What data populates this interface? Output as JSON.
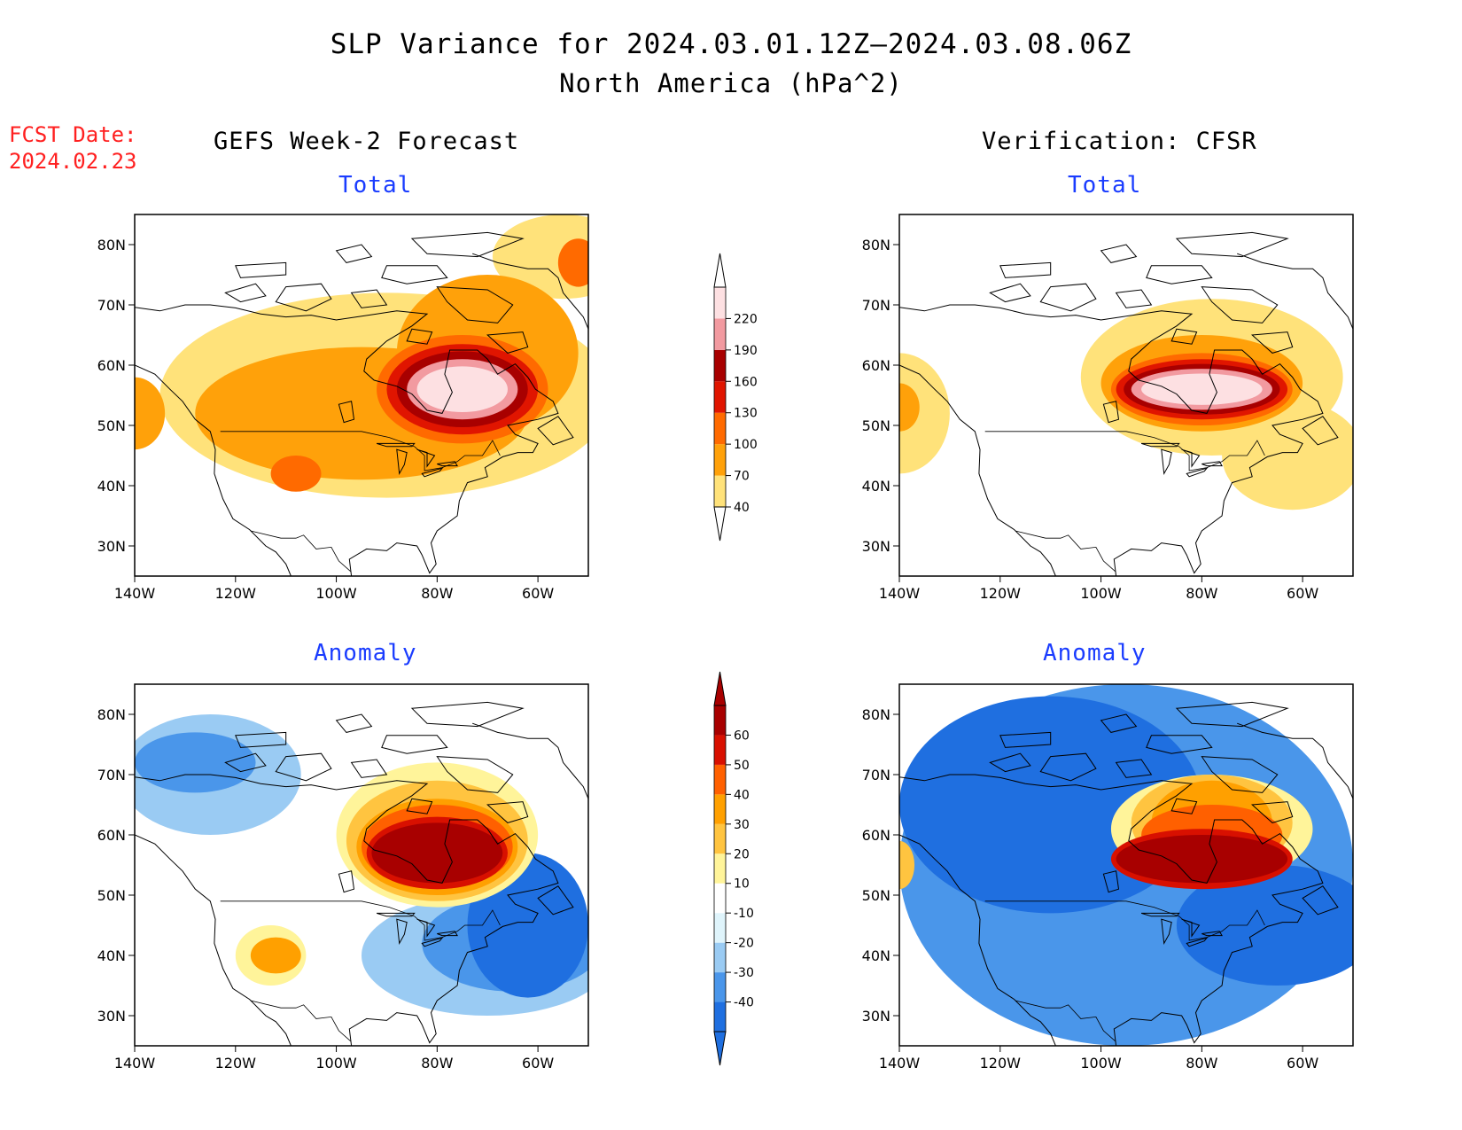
{
  "title": "SLP Variance for 2024.03.01.12Z—2024.03.08.06Z",
  "subtitle": "North America (hPa^2)",
  "fcst_date_label": "FCST Date:",
  "fcst_date_value": "2024.02.23",
  "columns": [
    "GEFS Week-2 Forecast",
    "Verification: CFSR"
  ],
  "panel_titles": {
    "total": "Total",
    "anomaly": "Anomaly"
  },
  "map_extent": {
    "lon_min": -140,
    "lon_max": -50,
    "lat_min": 25,
    "lat_max": 85
  },
  "lon_ticks": [
    -140,
    -120,
    -100,
    -80,
    -60
  ],
  "lon_tick_labels": [
    "140W",
    "120W",
    "100W",
    "80W",
    "60W"
  ],
  "lat_ticks": [
    30,
    40,
    50,
    60,
    70,
    80
  ],
  "lat_tick_labels": [
    "30N",
    "40N",
    "50N",
    "60N",
    "70N",
    "80N"
  ],
  "colorbars": {
    "total": {
      "levels": [
        40,
        70,
        100,
        130,
        160,
        190,
        220
      ],
      "labels": [
        "40",
        "70",
        "100",
        "130",
        "160",
        "190",
        "220"
      ],
      "colors": [
        "#ffe27a",
        "#ffa10a",
        "#ff6a00",
        "#e01500",
        "#a80000",
        "#f29aa0",
        "#fde0e2"
      ]
    },
    "anomaly": {
      "levels": [
        -40,
        -30,
        -20,
        -10,
        10,
        20,
        30,
        40,
        50,
        60
      ],
      "labels": [
        "-40",
        "-30",
        "-20",
        "-10",
        "10",
        "20",
        "30",
        "40",
        "50",
        "60"
      ],
      "colors": [
        "#1f6fe0",
        "#4a96ea",
        "#9acbf3",
        "#dff4fb",
        "#ffffff",
        "#fff49a",
        "#ffc440",
        "#ffa000",
        "#ff6000",
        "#d81000",
        "#a80000"
      ]
    }
  },
  "fields": {
    "forecast_total": [
      {
        "level": 40,
        "lon": -90,
        "lat": 55,
        "rlon": 45,
        "rlat": 17
      },
      {
        "level": 40,
        "lon": -55,
        "lat": 78,
        "rlon": 14,
        "rlat": 7
      },
      {
        "level": 70,
        "lon": -95,
        "lat": 52,
        "rlon": 33,
        "rlat": 11
      },
      {
        "level": 70,
        "lon": -70,
        "lat": 62,
        "rlon": 18,
        "rlat": 13
      },
      {
        "level": 70,
        "lon": -140,
        "lat": 52,
        "rlon": 6,
        "rlat": 6
      },
      {
        "level": 100,
        "lon": -108,
        "lat": 42,
        "rlon": 5,
        "rlat": 3
      },
      {
        "level": 100,
        "lon": -75,
        "lat": 56,
        "rlon": 17,
        "rlat": 9
      },
      {
        "level": 100,
        "lon": -52,
        "lat": 77,
        "rlon": 4,
        "rlat": 4
      },
      {
        "level": 130,
        "lon": -75,
        "lat": 56,
        "rlon": 15,
        "rlat": 7.5
      },
      {
        "level": 160,
        "lon": -75,
        "lat": 56,
        "rlon": 13,
        "rlat": 6.3
      },
      {
        "level": 190,
        "lon": -75,
        "lat": 56,
        "rlon": 11,
        "rlat": 5
      },
      {
        "level": 220,
        "lon": -75,
        "lat": 56,
        "rlon": 9,
        "rlat": 3.8
      }
    ],
    "cfsr_total": [
      {
        "level": 40,
        "lon": -78,
        "lat": 58,
        "rlon": 26,
        "rlat": 13
      },
      {
        "level": 40,
        "lon": -62,
        "lat": 45,
        "rlon": 14,
        "rlat": 9
      },
      {
        "level": 40,
        "lon": -140,
        "lat": 52,
        "rlon": 10,
        "rlat": 10
      },
      {
        "level": 70,
        "lon": -80,
        "lat": 57,
        "rlon": 20,
        "rlat": 8
      },
      {
        "level": 70,
        "lon": -140,
        "lat": 53,
        "rlon": 4,
        "rlat": 4
      },
      {
        "level": 100,
        "lon": -80,
        "lat": 56,
        "rlon": 18,
        "rlat": 6
      },
      {
        "level": 130,
        "lon": -80,
        "lat": 56,
        "rlon": 17,
        "rlat": 5
      },
      {
        "level": 160,
        "lon": -80,
        "lat": 56,
        "rlon": 15.5,
        "rlat": 4.2
      },
      {
        "level": 190,
        "lon": -80,
        "lat": 56,
        "rlon": 14,
        "rlat": 3.4
      },
      {
        "level": 220,
        "lon": -80,
        "lat": 56,
        "rlon": 12,
        "rlat": 2.6
      }
    ],
    "forecast_anomaly": [
      {
        "level": -20,
        "lon": -125,
        "lat": 70,
        "rlon": 18,
        "rlat": 10
      },
      {
        "level": -30,
        "lon": -128,
        "lat": 72,
        "rlon": 12,
        "rlat": 5
      },
      {
        "level": -20,
        "lon": -70,
        "lat": 40,
        "rlon": 25,
        "rlat": 10
      },
      {
        "level": -30,
        "lon": -65,
        "lat": 42,
        "rlon": 18,
        "rlat": 8
      },
      {
        "level": -40,
        "lon": -62,
        "lat": 45,
        "rlon": 12,
        "rlat": 12
      },
      {
        "level": 10,
        "lon": -80,
        "lat": 60,
        "rlon": 20,
        "rlat": 12
      },
      {
        "level": 20,
        "lon": -80,
        "lat": 59,
        "rlon": 18,
        "rlat": 10
      },
      {
        "level": 30,
        "lon": -80,
        "lat": 58,
        "rlon": 16,
        "rlat": 8
      },
      {
        "level": 40,
        "lon": -80,
        "lat": 58,
        "rlon": 15,
        "rlat": 7
      },
      {
        "level": 50,
        "lon": -80,
        "lat": 57,
        "rlon": 14,
        "rlat": 6
      },
      {
        "level": 60,
        "lon": -80,
        "lat": 57,
        "rlon": 13,
        "rlat": 5
      },
      {
        "level": 10,
        "lon": -113,
        "lat": 40,
        "rlon": 7,
        "rlat": 5
      },
      {
        "level": 30,
        "lon": -112,
        "lat": 40,
        "rlon": 5,
        "rlat": 3
      }
    ],
    "cfsr_anomaly": [
      {
        "level": -30,
        "lon": -95,
        "lat": 55,
        "rlon": 45,
        "rlat": 30
      },
      {
        "level": -40,
        "lon": -110,
        "lat": 65,
        "rlon": 30,
        "rlat": 18
      },
      {
        "level": -40,
        "lon": -65,
        "lat": 45,
        "rlon": 20,
        "rlat": 10
      },
      {
        "level": 10,
        "lon": -78,
        "lat": 61,
        "rlon": 20,
        "rlat": 9
      },
      {
        "level": 20,
        "lon": -78,
        "lat": 62,
        "rlon": 16,
        "rlat": 8
      },
      {
        "level": 30,
        "lon": -78,
        "lat": 62,
        "rlon": 12,
        "rlat": 7
      },
      {
        "level": 40,
        "lon": -78,
        "lat": 60,
        "rlon": 14,
        "rlat": 5
      },
      {
        "level": 50,
        "lon": -80,
        "lat": 56,
        "rlon": 18,
        "rlat": 5
      },
      {
        "level": 60,
        "lon": -80,
        "lat": 56,
        "rlon": 17,
        "rlat": 4
      },
      {
        "level": 20,
        "lon": -140,
        "lat": 55,
        "rlon": 3,
        "rlat": 4
      }
    ]
  }
}
